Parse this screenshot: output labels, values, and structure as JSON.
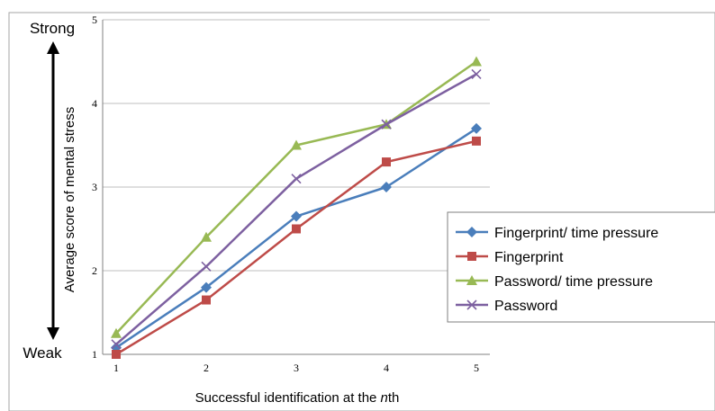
{
  "chart_data": {
    "type": "line",
    "x": [
      1,
      2,
      3,
      4,
      5
    ],
    "xlabel": {
      "prefix": "Successful identification at the ",
      "italic": "n",
      "suffix": "th"
    },
    "ylabel": "Average score of mental stress",
    "ylim": [
      1,
      5
    ],
    "yticks": [
      1,
      2,
      3,
      4,
      5
    ],
    "xticks": [
      1,
      2,
      3,
      4,
      5
    ],
    "grid": true,
    "legend_position": "right",
    "side_labels": {
      "top": "Strong",
      "bottom": "Weak"
    },
    "series": [
      {
        "name": "Fingerprint/ time pressure",
        "color": "#4a7ebb",
        "marker": "diamond",
        "values": [
          1.08,
          1.8,
          2.65,
          3.0,
          3.7
        ]
      },
      {
        "name": "Fingerprint",
        "color": "#be4b48",
        "marker": "square",
        "values": [
          1.0,
          1.65,
          2.5,
          3.3,
          3.55
        ]
      },
      {
        "name": "Password/ time pressure",
        "color": "#98b954",
        "marker": "triangle",
        "values": [
          1.25,
          2.4,
          3.5,
          3.75,
          4.5
        ]
      },
      {
        "name": "Password",
        "color": "#7d60a0",
        "marker": "x",
        "values": [
          1.12,
          2.05,
          3.1,
          3.75,
          4.35
        ]
      }
    ]
  }
}
